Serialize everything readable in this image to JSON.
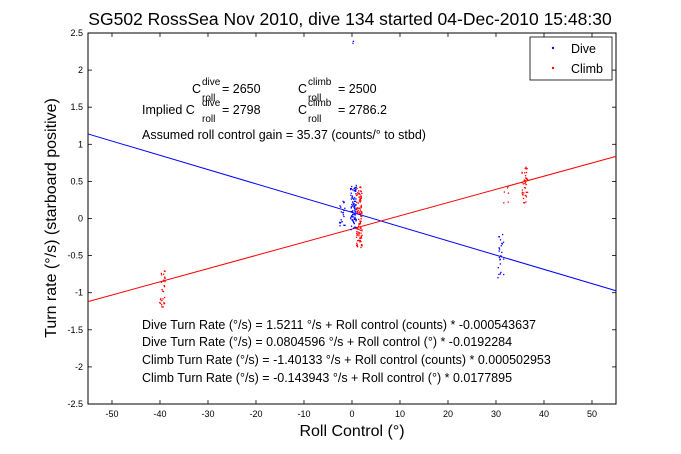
{
  "chart_data": {
    "type": "scatter",
    "title": "SG502 RossSea Nov 2010, dive 134 started 04-Dec-2010 15:48:30",
    "xlabel": "Roll Control (°)",
    "ylabel": "Turn rate (°/s) (starboard positive)",
    "xlim": [
      -55,
      55
    ],
    "ylim": [
      -2.5,
      2.5
    ],
    "xticks": [
      -50,
      -40,
      -30,
      -20,
      -10,
      0,
      10,
      20,
      30,
      40,
      50
    ],
    "yticks": [
      -2.5,
      -2,
      -1.5,
      -1,
      -0.5,
      0,
      0.5,
      1,
      1.5,
      2,
      2.5
    ],
    "grid": false,
    "legend": {
      "position": "top-right",
      "entries": [
        {
          "name": "Dive",
          "color": "#0000ff"
        },
        {
          "name": "Climb",
          "color": "#ff0000"
        }
      ]
    },
    "series": [
      {
        "name": "Dive",
        "color": "#0000ff",
        "type": "scatter",
        "clusters": [
          {
            "x": 0.3,
            "y_range": [
              -0.15,
              0.45
            ],
            "count": 90
          },
          {
            "x": -2.0,
            "y_range": [
              -0.1,
              0.25
            ],
            "count": 20
          },
          {
            "x": 31.0,
            "y_range": [
              -0.8,
              -0.2
            ],
            "count": 25
          },
          {
            "x": 0.0,
            "y_range": [
              2.3,
              2.4
            ],
            "count": 2
          }
        ]
      },
      {
        "name": "Climb",
        "color": "#ff0000",
        "type": "scatter",
        "clusters": [
          {
            "x": -39.5,
            "y_range": [
              -1.2,
              -0.7
            ],
            "count": 30
          },
          {
            "x": 1.5,
            "y_range": [
              -0.4,
              0.45
            ],
            "count": 110
          },
          {
            "x": 36.0,
            "y_range": [
              0.2,
              0.7
            ],
            "count": 40
          },
          {
            "x": 32.0,
            "y_range": [
              0.2,
              0.5
            ],
            "count": 6
          }
        ]
      },
      {
        "name": "Dive fit",
        "color": "#0000ff",
        "type": "line",
        "x": [
          -55,
          55
        ],
        "y": [
          1.1394,
          -0.9742
        ]
      },
      {
        "name": "Climb fit",
        "color": "#ff0000",
        "type": "line",
        "x": [
          -55,
          55
        ],
        "y": [
          -1.1205,
          0.8378
        ]
      }
    ],
    "annotations": {
      "c_dive_label": "C",
      "c_dive_sup": "dive",
      "c_dive_sub": "roll",
      "c_dive_value": " = 2650",
      "c_climb_label": "C",
      "c_climb_sup": "climb",
      "c_climb_sub": "roll",
      "c_climb_value": " = 2500",
      "implied_prefix": "Implied C",
      "implied_dive_sup": "dive",
      "implied_dive_sub": "roll",
      "implied_dive_value": " = 2798",
      "implied_climb_label": "C",
      "implied_climb_sup": "climb",
      "implied_climb_sub": "roll",
      "implied_climb_value": " = 2786.2",
      "gain": "Assumed roll control gain = 35.37 (counts/° to stbd)",
      "fit_lines": [
        "Dive Turn Rate (°/s) = 1.5211 °/s + Roll control (counts) * -0.000543637",
        "Dive Turn Rate (°/s) = 0.0804596 °/s + Roll control (°) * -0.0192284",
        "Climb Turn Rate (°/s) = -1.40133 °/s + Roll control (counts) * 0.000502953",
        "Climb Turn Rate (°/s) = -0.143943 °/s + Roll control (°) * 0.0177895"
      ]
    }
  }
}
